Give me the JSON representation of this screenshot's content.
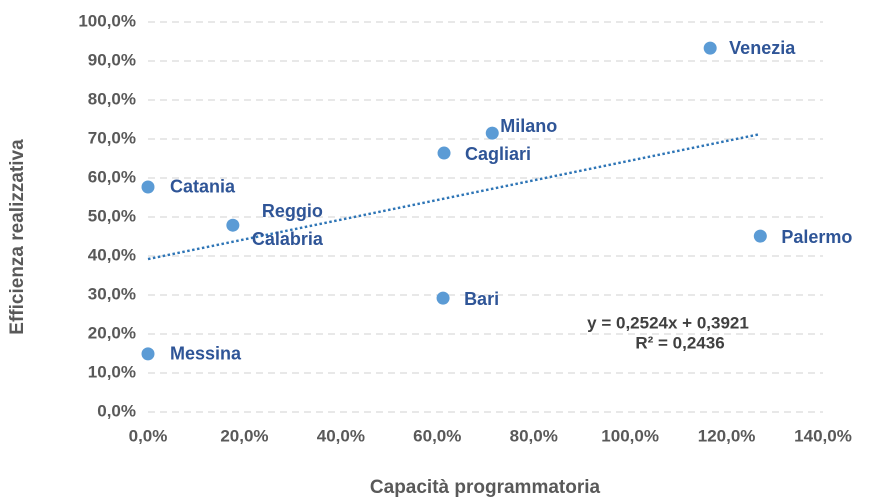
{
  "chart_data": {
    "type": "scatter",
    "x_label": "Capacità programmatoria",
    "y_label": "Efficienza realizzativa",
    "color": "#5b9bd5",
    "label_color": "#2f5597",
    "grid": true,
    "x": [
      0,
      0,
      17.6,
      61.4,
      71.4,
      61.2,
      116.6,
      127.0
    ],
    "values": [
      57.7,
      14.9,
      47.9,
      66.4,
      71.5,
      29.2,
      93.3,
      45.1
    ],
    "point_labels": [
      "Catania",
      "Messina",
      [
        "Reggio",
        "Calabria"
      ],
      "Cagliari",
      "Milano",
      "Bari",
      "Venezia",
      "Palermo"
    ],
    "trendline": {
      "slope": 0.2524,
      "intercept": 0.3921,
      "color": "#2e75b6",
      "equation": "y = 0,2524x + 0,3921",
      "r2": "R² = 0,2436"
    },
    "xlim": [
      0,
      140
    ],
    "ylim": [
      0,
      100
    ],
    "xticks": [
      {
        "value": 0,
        "label": "0,0%"
      },
      {
        "value": 20,
        "label": "20,0%"
      },
      {
        "value": 40,
        "label": "40,0%"
      },
      {
        "value": 60,
        "label": "60,0%"
      },
      {
        "value": 80,
        "label": "80,0%"
      },
      {
        "value": 100,
        "label": "100,0%"
      },
      {
        "value": 120,
        "label": "120,0%"
      },
      {
        "value": 140,
        "label": "140,0%"
      }
    ],
    "yticks": [
      {
        "value": 0,
        "label": "0,0%"
      },
      {
        "value": 10,
        "label": "10,0%"
      },
      {
        "value": 20,
        "label": "20,0%"
      },
      {
        "value": 30,
        "label": "30,0%"
      },
      {
        "value": 40,
        "label": "40,0%"
      },
      {
        "value": 50,
        "label": "50,0%"
      },
      {
        "value": 60,
        "label": "60,0%"
      },
      {
        "value": 70,
        "label": "70,0%"
      },
      {
        "value": 80,
        "label": "80,0%"
      },
      {
        "value": 90,
        "label": "90,0%"
      },
      {
        "value": 100,
        "label": "100,0%"
      }
    ]
  }
}
